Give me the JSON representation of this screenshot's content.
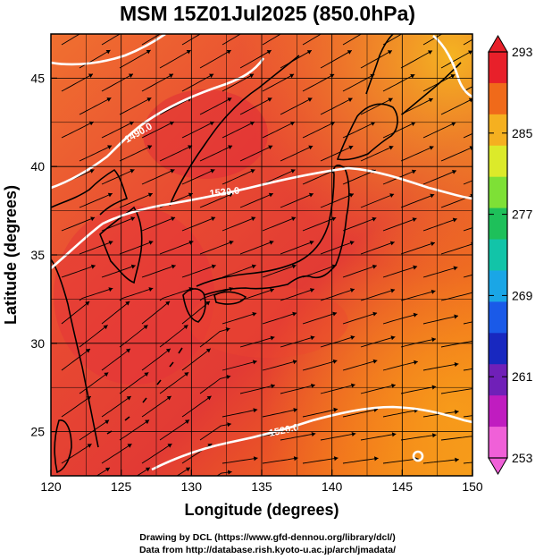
{
  "title": "MSM 15Z01Jul2025 (850.0hPa)",
  "axes": {
    "xlabel": "Longitude (degrees)",
    "ylabel": "Latitude  (degrees)",
    "x_range": [
      120,
      150
    ],
    "y_range": [
      22.5,
      47.5
    ],
    "x_ticks": [
      "120",
      "125",
      "130",
      "135",
      "140",
      "145",
      "150"
    ],
    "y_ticks": [
      "25",
      "30",
      "35",
      "40",
      "45"
    ],
    "grid": true
  },
  "colorbar": {
    "min": 253,
    "max": 293,
    "labels": [
      "293",
      "285",
      "277",
      "269",
      "261",
      "253"
    ],
    "colors": [
      "#e8202a",
      "#f06a1a",
      "#f5b020",
      "#dcea2a",
      "#7ee036",
      "#1ec05a",
      "#12c4a8",
      "#1aa6e6",
      "#1a5ae8",
      "#1828c0",
      "#7020b8",
      "#c01cc0",
      "#f060d8"
    ]
  },
  "contours": {
    "labels": [
      "1490.0",
      "1520.0",
      "1520.0"
    ]
  },
  "footer": {
    "line1": "Drawing by DCL (https://www.gfd-dennou.org/library/dcl/)",
    "line2": "Data from http://database.rish.kyoto-u.ac.jp/arch/jmadata/"
  }
}
